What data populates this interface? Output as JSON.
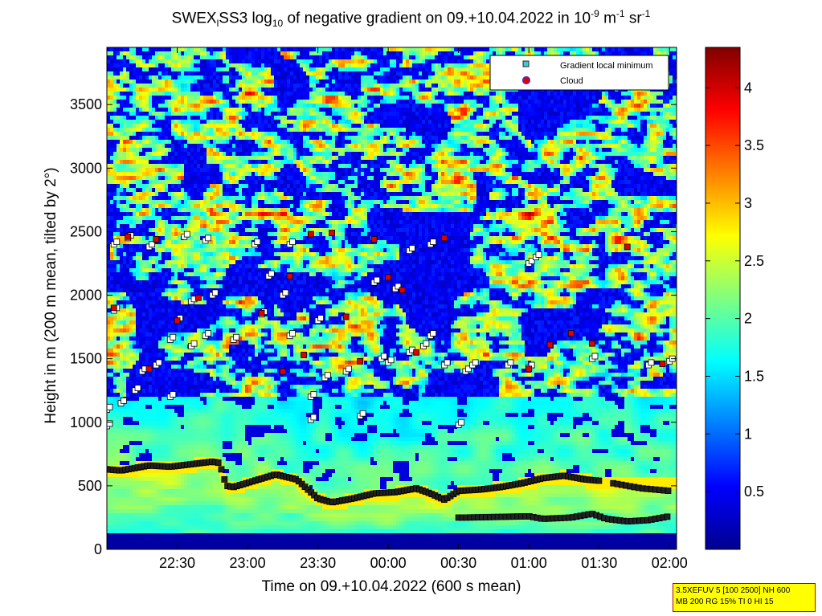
{
  "chart_data": {
    "type": "heatmap",
    "title": {
      "prefix": "SWEX",
      "sub1": "l",
      "mid": "SS3 log",
      "sub2": "10",
      "rest": " of negative gradient on 09.+10.04.2022 in 10",
      "sup1": "-9",
      "unit_m": " m",
      "sup2": "-1",
      "unit_sr": " sr",
      "sup3": "-1"
    },
    "xlabel": "Time on 09.+10.04.2022 (600 s mean)",
    "ylabel": "Height in m (200 m mean, tilted by 2°)",
    "x_ticks": [
      "22:30",
      "23:00",
      "23:30",
      "00:00",
      "00:30",
      "01:00",
      "01:30",
      "02:00"
    ],
    "x_tick_hours": [
      22.5,
      23.0,
      23.5,
      24.0,
      24.5,
      25.0,
      25.5,
      26.0
    ],
    "xlim_hours": [
      22.0,
      26.05
    ],
    "y_ticks": [
      0,
      500,
      1000,
      1500,
      2000,
      2500,
      3000,
      3500
    ],
    "ylim": [
      0,
      3950
    ],
    "colorbar": {
      "ticks": [
        "0.5",
        "1",
        "1.5",
        "2",
        "2.5",
        "3",
        "3.5",
        "4"
      ],
      "tick_values": [
        0.5,
        1,
        1.5,
        2,
        2.5,
        3,
        3.5,
        4
      ],
      "range": [
        0,
        4.35
      ],
      "colormap": "jet"
    },
    "legend": {
      "position": "top-right",
      "entries": [
        {
          "label": "Gradient local minimum",
          "marker": "square",
          "color": "#40c8d8"
        },
        {
          "label": "Cloud",
          "marker": "circle",
          "color": "#e00000",
          "edge": "#2040ff"
        }
      ]
    },
    "boundary_layer_top": {
      "x_hours": [
        22.0,
        22.1,
        22.2,
        22.3,
        22.45,
        22.6,
        22.75,
        22.8,
        22.85,
        22.9,
        23.05,
        23.2,
        23.35,
        23.5,
        23.6,
        23.75,
        23.9,
        24.05,
        24.2,
        24.3,
        24.4,
        24.5,
        24.65,
        24.8,
        24.95,
        25.1,
        25.25,
        25.4,
        25.5
      ],
      "height_m": [
        630,
        620,
        640,
        660,
        650,
        670,
        690,
        680,
        500,
        490,
        540,
        590,
        550,
        400,
        370,
        400,
        440,
        450,
        480,
        440,
        390,
        460,
        470,
        490,
        520,
        560,
        580,
        550,
        540
      ]
    },
    "lower_layer": {
      "x_hours": [
        24.5,
        24.55,
        25.0,
        25.1,
        25.3,
        25.45,
        25.55,
        25.7,
        25.85,
        26.0
      ],
      "height_m": [
        250,
        250,
        260,
        240,
        250,
        280,
        240,
        220,
        230,
        260
      ]
    },
    "late_layer": {
      "x_hours": [
        25.6,
        25.8,
        26.0
      ],
      "height_m": [
        520,
        480,
        460
      ]
    },
    "minima_points": [
      [
        22.0,
        1100
      ],
      [
        22.1,
        1150
      ],
      [
        22.2,
        1250
      ],
      [
        22.25,
        1400
      ],
      [
        22.35,
        1450
      ],
      [
        22.45,
        1200
      ],
      [
        22.45,
        1650
      ],
      [
        22.6,
        1600
      ],
      [
        22.7,
        1680
      ],
      [
        22.9,
        1650
      ],
      [
        23.1,
        1850
      ],
      [
        23.3,
        1680
      ],
      [
        23.45,
        1200
      ],
      [
        23.45,
        1020
      ],
      [
        23.55,
        1350
      ],
      [
        23.7,
        1400
      ],
      [
        23.8,
        1050
      ],
      [
        23.95,
        1500
      ],
      [
        24.0,
        1470
      ],
      [
        24.15,
        1550
      ],
      [
        24.25,
        1600
      ],
      [
        24.3,
        1680
      ],
      [
        24.4,
        1450
      ],
      [
        24.55,
        1400
      ],
      [
        24.6,
        1450
      ],
      [
        24.85,
        1450
      ],
      [
        25.0,
        1430
      ],
      [
        22.05,
        2400
      ],
      [
        22.15,
        2450
      ],
      [
        22.3,
        2380
      ],
      [
        22.55,
        2460
      ],
      [
        22.7,
        2430
      ],
      [
        23.05,
        2400
      ],
      [
        23.3,
        2400
      ],
      [
        22.6,
        1950
      ],
      [
        22.75,
        2000
      ],
      [
        23.25,
        2000
      ],
      [
        23.5,
        1800
      ],
      [
        23.9,
        2100
      ],
      [
        24.05,
        2050
      ],
      [
        24.15,
        2350
      ],
      [
        24.3,
        2400
      ],
      [
        23.15,
        2150
      ],
      [
        22.05,
        1880
      ],
      [
        22.5,
        1800
      ],
      [
        24.5,
        980
      ],
      [
        25.45,
        1500
      ],
      [
        25.85,
        1450
      ],
      [
        26.0,
        1480
      ],
      [
        25.0,
        2250
      ],
      [
        25.05,
        2300
      ],
      [
        22.0,
        970
      ]
    ],
    "cloud_points": [
      [
        22.05,
        1900
      ],
      [
        22.3,
        1420
      ],
      [
        22.15,
        2460
      ],
      [
        22.35,
        2440
      ],
      [
        22.5,
        1800
      ],
      [
        22.65,
        1980
      ],
      [
        23.45,
        2480
      ],
      [
        23.6,
        2490
      ],
      [
        23.3,
        2150
      ],
      [
        23.7,
        1830
      ],
      [
        23.9,
        2440
      ],
      [
        24.0,
        2140
      ],
      [
        24.1,
        2040
      ],
      [
        24.4,
        2450
      ],
      [
        23.1,
        1860
      ],
      [
        23.25,
        1400
      ],
      [
        23.4,
        1530
      ],
      [
        23.8,
        1480
      ],
      [
        24.2,
        1550
      ],
      [
        25.0,
        1420
      ],
      [
        25.15,
        1610
      ],
      [
        25.3,
        1700
      ],
      [
        25.45,
        1620
      ],
      [
        25.7,
        2380
      ],
      [
        25.95,
        1460
      ]
    ]
  }
}
